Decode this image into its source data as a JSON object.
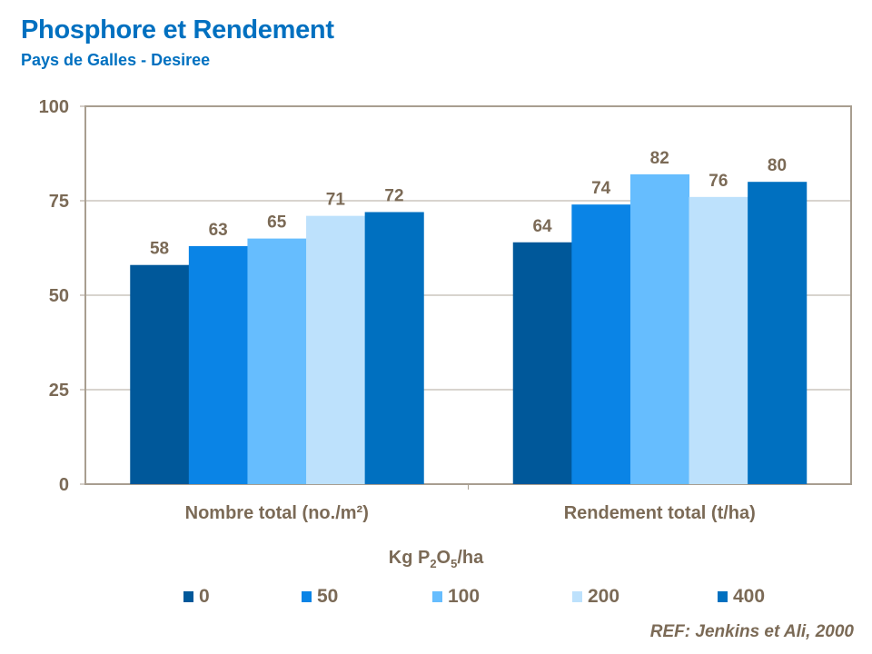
{
  "title": "Phosphore et Rendement",
  "subtitle": "Pays de Galles - Desiree",
  "reference": "REF: Jenkins et Ali, 2000",
  "chart_data": {
    "type": "bar",
    "categories": [
      "Nombre total (no./m²)",
      "Rendement total (t/ha)"
    ],
    "legend_title": {
      "prefix": "Kg P",
      "sub1": "2",
      "mid": "O",
      "sub2": "5",
      "suffix": "/ha"
    },
    "legend_position": "bottom",
    "series": [
      {
        "name": "0",
        "values": [
          58,
          64
        ],
        "color": "#00589a"
      },
      {
        "name": "50",
        "values": [
          63,
          74
        ],
        "color": "#0a84e6"
      },
      {
        "name": "100",
        "values": [
          65,
          82
        ],
        "color": "#66bdfe"
      },
      {
        "name": "200",
        "values": [
          71,
          76
        ],
        "color": "#bde1fc"
      },
      {
        "name": "400",
        "values": [
          72,
          80
        ],
        "color": "#0070c0"
      }
    ],
    "ylim": [
      0,
      100
    ],
    "yticks": [
      "0",
      "25",
      "50",
      "75",
      "100"
    ],
    "grid": true,
    "text_color": "#7b6a56"
  }
}
